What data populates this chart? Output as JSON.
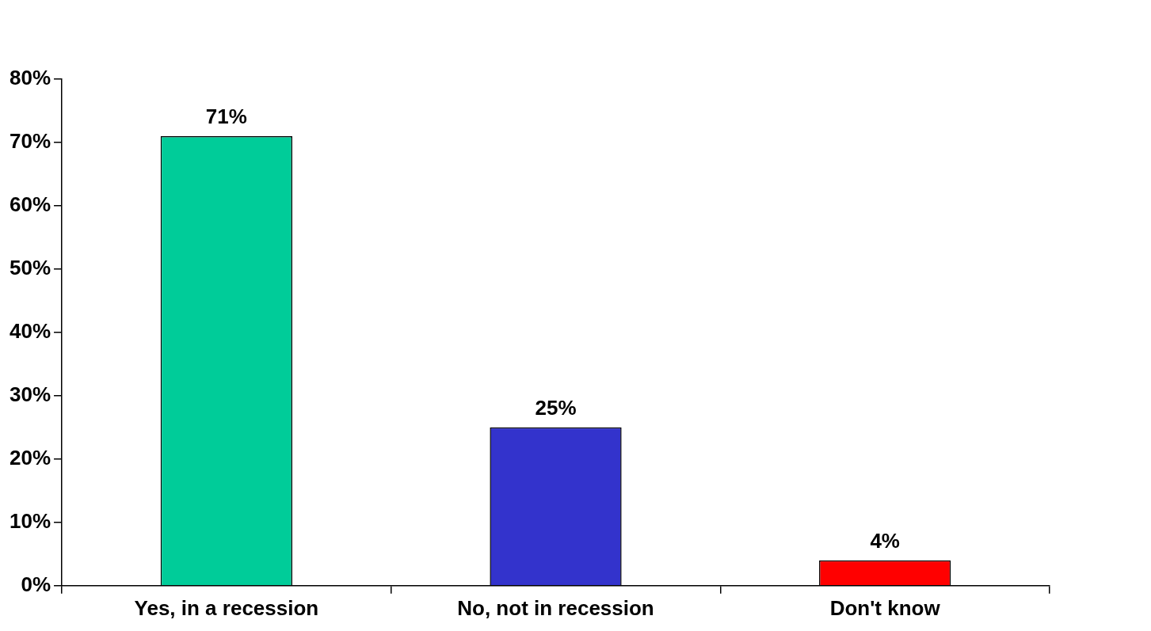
{
  "chart_data": {
    "type": "bar",
    "categories": [
      "Yes, in a recession",
      "No, not in recession",
      "Don't know"
    ],
    "values": [
      71,
      25,
      4
    ],
    "colors": [
      "#00cc99",
      "#3333cc",
      "#ff0000"
    ],
    "value_labels": [
      "71%",
      "25%",
      "4%"
    ],
    "ylim": [
      0,
      80
    ],
    "yticks": [
      {
        "value": 0,
        "label": "0%"
      },
      {
        "value": 10,
        "label": "10%"
      },
      {
        "value": 20,
        "label": "20%"
      },
      {
        "value": 30,
        "label": "30%"
      },
      {
        "value": 40,
        "label": "40%"
      },
      {
        "value": 50,
        "label": "50%"
      },
      {
        "value": 60,
        "label": "60%"
      },
      {
        "value": 70,
        "label": "70%"
      },
      {
        "value": 80,
        "label": "80%"
      }
    ],
    "grid": false
  }
}
